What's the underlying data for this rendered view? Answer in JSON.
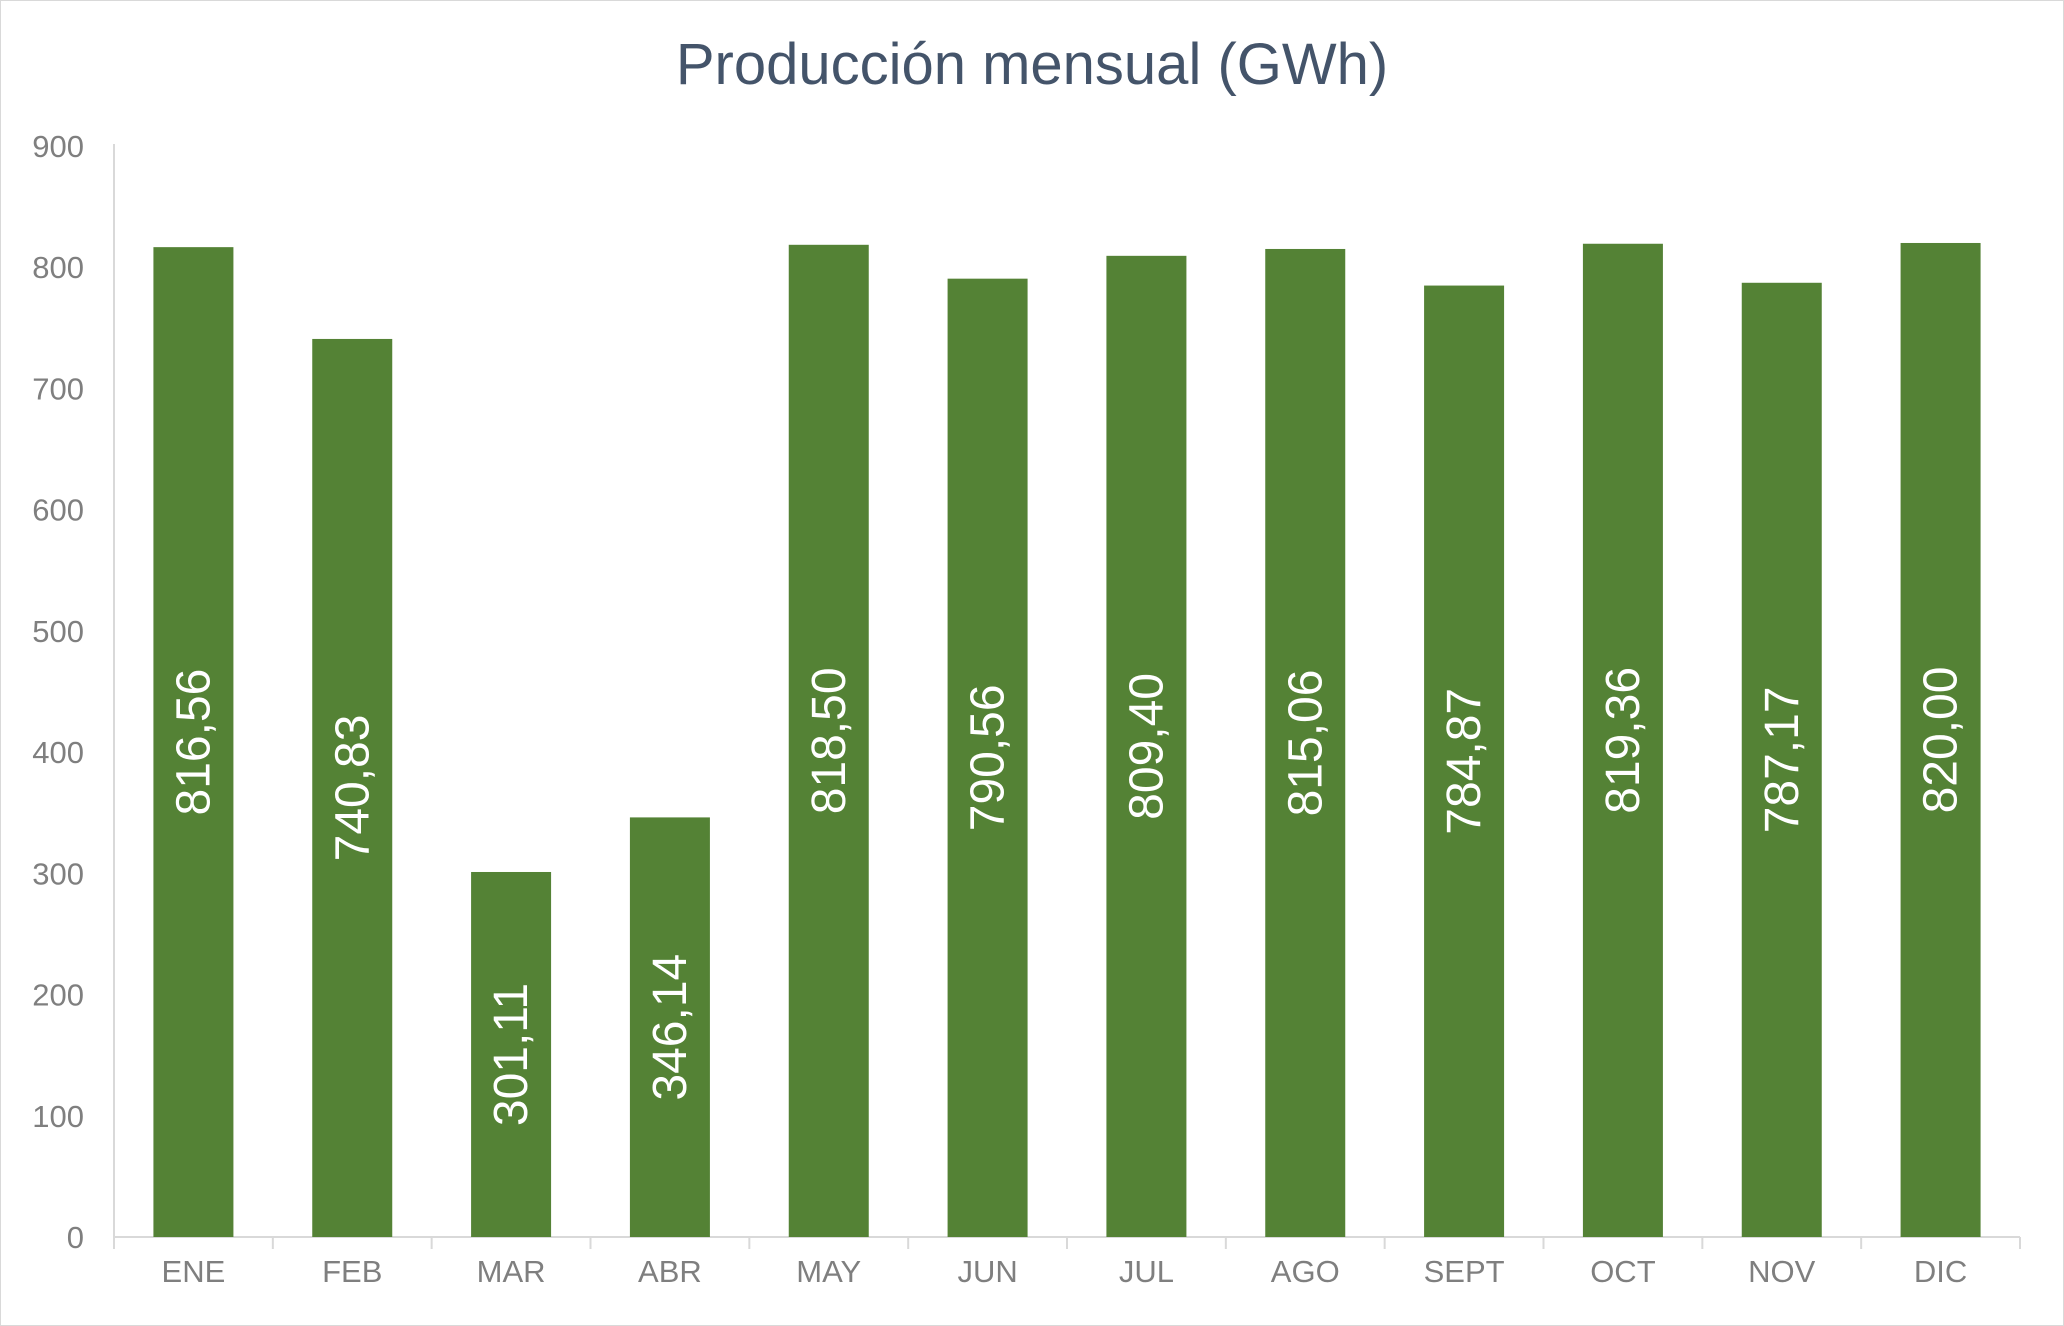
{
  "chart_data": {
    "type": "bar",
    "title": "Producción mensual (GWh)",
    "categories": [
      "ENE",
      "FEB",
      "MAR",
      "ABR",
      "MAY",
      "JUN",
      "JUL",
      "AGO",
      "SEPT",
      "OCT",
      "NOV",
      "DIC"
    ],
    "values": [
      816.56,
      740.83,
      301.11,
      346.14,
      818.5,
      790.56,
      809.4,
      815.06,
      784.87,
      819.36,
      787.17,
      820.0
    ],
    "data_labels": [
      "816,56",
      "740,83",
      "301,11",
      "346,14",
      "818,50",
      "790,56",
      "809,40",
      "815,06",
      "784,87",
      "819,36",
      "787,17",
      "820,00"
    ],
    "data_label_orientation": "vertical",
    "ylim": [
      0,
      900
    ],
    "y_ticks": [
      "0",
      "100",
      "200",
      "300",
      "400",
      "500",
      "600",
      "700",
      "800",
      "900"
    ],
    "xlabel": "",
    "ylabel": "",
    "grid": false,
    "legend": false,
    "colors": {
      "bar": "#548235",
      "axis": "#d9d9d9",
      "title": "#44546a",
      "tick_text": "#7f7f7f",
      "data_label_text": "#ffffff"
    }
  }
}
